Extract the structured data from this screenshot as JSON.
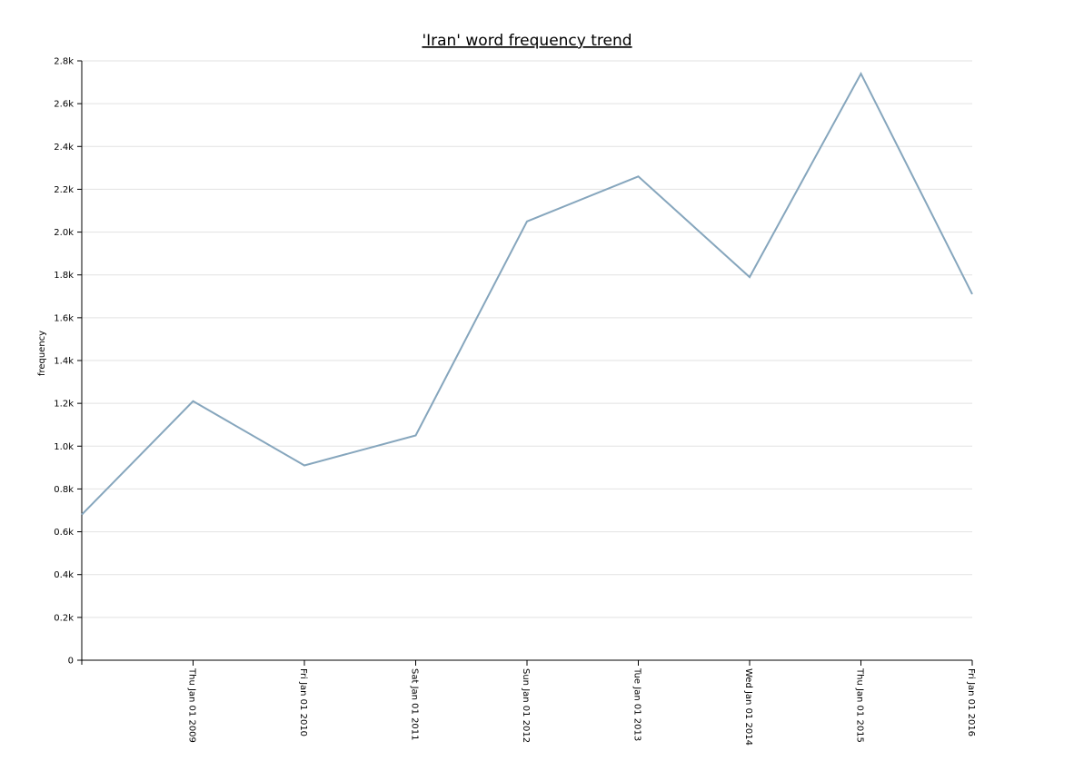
{
  "chart_data": {
    "type": "line",
    "title": "'Iran' word frequency trend",
    "xlabel": "",
    "ylabel": "frequency",
    "x": [
      "2008-01-01",
      "2009-01-01",
      "2010-01-01",
      "2011-01-01",
      "2012-01-01",
      "2013-01-01",
      "2014-01-01",
      "2015-01-01",
      "2016-01-01"
    ],
    "x_tick_labels": [
      "Thu Jan 01 2009",
      "Fri Jan 01 2010",
      "Sat Jan 01 2011",
      "Sun Jan 01 2012",
      "Tue Jan 01 2013",
      "Wed Jan 01 2014",
      "Thu Jan 01 2015",
      "Fri Jan 01 2016"
    ],
    "y_tick_labels": [
      "0",
      "0.2k",
      "0.4k",
      "0.6k",
      "0.8k",
      "1.0k",
      "1.2k",
      "1.4k",
      "1.6k",
      "1.8k",
      "2.0k",
      "2.2k",
      "2.4k",
      "2.6k",
      "2.8k"
    ],
    "series": [
      {
        "values": [
          680,
          1210,
          910,
          1050,
          2050,
          2260,
          1790,
          2740,
          1710
        ],
        "color": "#86a6bd"
      }
    ],
    "ylim": [
      0,
      2800
    ],
    "grid": true,
    "legend": "none"
  }
}
